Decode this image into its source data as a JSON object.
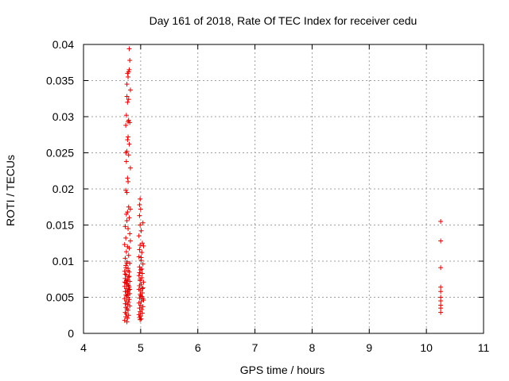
{
  "chart_data": {
    "type": "scatter",
    "title": "Day 161 of 2018, Rate Of TEC Index for receiver cedu",
    "xlabel": "GPS time / hours",
    "ylabel": "ROTI / TECUs",
    "xlim": [
      4,
      11
    ],
    "ylim": [
      0,
      0.04
    ],
    "xticks": [
      4,
      5,
      6,
      7,
      8,
      9,
      10,
      11
    ],
    "xtick_labels": [
      "4",
      "5",
      "6",
      "7",
      "8",
      "9",
      "10",
      "11"
    ],
    "yticks": [
      0,
      0.005,
      0.01,
      0.015,
      0.02,
      0.025,
      0.03,
      0.035,
      0.04
    ],
    "ytick_labels": [
      "0",
      "0.005",
      "0.01",
      "0.015",
      "0.02",
      "0.025",
      "0.03",
      "0.035",
      "0.04"
    ],
    "grid": true,
    "marker": "+",
    "color": "#e00000",
    "series": [
      {
        "name": "ROTI",
        "points": [
          [
            4.8,
            0.0394
          ],
          [
            4.81,
            0.0378
          ],
          [
            4.8,
            0.0365
          ],
          [
            4.79,
            0.0362
          ],
          [
            4.77,
            0.036
          ],
          [
            4.78,
            0.0355
          ],
          [
            4.76,
            0.0345
          ],
          [
            4.82,
            0.0337
          ],
          [
            4.76,
            0.0328
          ],
          [
            4.79,
            0.0324
          ],
          [
            4.77,
            0.032
          ],
          [
            4.75,
            0.0302
          ],
          [
            4.79,
            0.0295
          ],
          [
            4.78,
            0.0293
          ],
          [
            4.81,
            0.0292
          ],
          [
            4.74,
            0.0288
          ],
          [
            4.78,
            0.0272
          ],
          [
            4.77,
            0.0268
          ],
          [
            4.8,
            0.0262
          ],
          [
            4.76,
            0.0252
          ],
          [
            4.74,
            0.025
          ],
          [
            4.79,
            0.0247
          ],
          [
            4.75,
            0.0238
          ],
          [
            4.82,
            0.0229
          ],
          [
            4.77,
            0.0215
          ],
          [
            4.78,
            0.021
          ],
          [
            4.74,
            0.0198
          ],
          [
            4.76,
            0.0195
          ],
          [
            4.99,
            0.0186
          ],
          [
            4.98,
            0.0178
          ],
          [
            4.79,
            0.0175
          ],
          [
            4.82,
            0.0172
          ],
          [
            5.0,
            0.0172
          ],
          [
            4.77,
            0.0168
          ],
          [
            4.75,
            0.0165
          ],
          [
            4.98,
            0.0163
          ],
          [
            4.8,
            0.016
          ],
          [
            4.76,
            0.0156
          ],
          [
            5.04,
            0.0153
          ],
          [
            4.99,
            0.015
          ],
          [
            4.73,
            0.0148
          ],
          [
            4.78,
            0.0145
          ],
          [
            5.01,
            0.0142
          ],
          [
            4.81,
            0.0138
          ],
          [
            4.97,
            0.0135
          ],
          [
            4.74,
            0.0132
          ],
          [
            4.82,
            0.0128
          ],
          [
            5.03,
            0.0125
          ],
          [
            4.72,
            0.0123
          ],
          [
            4.99,
            0.0122
          ],
          [
            4.77,
            0.012
          ],
          [
            5.05,
            0.0121
          ],
          [
            4.8,
            0.0118
          ],
          [
            4.98,
            0.0116
          ],
          [
            4.75,
            0.0113
          ],
          [
            5.02,
            0.0112
          ],
          [
            4.79,
            0.0108
          ],
          [
            4.97,
            0.0106
          ],
          [
            4.73,
            0.0104
          ],
          [
            5.01,
            0.0101
          ],
          [
            4.76,
            0.0099
          ],
          [
            4.81,
            0.0097
          ],
          [
            5.04,
            0.0096
          ],
          [
            4.74,
            0.0094
          ],
          [
            4.98,
            0.0092
          ],
          [
            4.78,
            0.009
          ],
          [
            5.0,
            0.0088
          ],
          [
            4.72,
            0.0086
          ],
          [
            4.8,
            0.0085
          ],
          [
            5.03,
            0.0083
          ],
          [
            4.75,
            0.0081
          ],
          [
            4.97,
            0.008
          ],
          [
            4.79,
            0.0078
          ],
          [
            5.02,
            0.0077
          ],
          [
            4.73,
            0.0076
          ],
          [
            4.77,
            0.0074
          ],
          [
            4.99,
            0.0073
          ],
          [
            4.81,
            0.0072
          ],
          [
            5.05,
            0.0071
          ],
          [
            4.74,
            0.007
          ],
          [
            4.76,
            0.0069
          ],
          [
            5.01,
            0.0068
          ],
          [
            4.78,
            0.0067
          ],
          [
            4.98,
            0.0066
          ],
          [
            4.72,
            0.0065
          ],
          [
            4.8,
            0.0064
          ],
          [
            5.04,
            0.0063
          ],
          [
            4.75,
            0.0062
          ],
          [
            4.97,
            0.0061
          ],
          [
            4.79,
            0.006
          ],
          [
            5.0,
            0.0059
          ],
          [
            4.73,
            0.0058
          ],
          [
            4.77,
            0.0057
          ],
          [
            5.03,
            0.0056
          ],
          [
            4.81,
            0.0055
          ],
          [
            4.99,
            0.0054
          ],
          [
            4.74,
            0.0053
          ],
          [
            4.76,
            0.0052
          ],
          [
            5.02,
            0.0051
          ],
          [
            4.78,
            0.005
          ],
          [
            4.98,
            0.0049
          ],
          [
            4.72,
            0.0048
          ],
          [
            4.8,
            0.0047
          ],
          [
            5.05,
            0.0046
          ],
          [
            4.75,
            0.0045
          ],
          [
            5.01,
            0.0044
          ],
          [
            4.79,
            0.0043
          ],
          [
            4.97,
            0.0042
          ],
          [
            4.73,
            0.0041
          ],
          [
            4.77,
            0.004
          ],
          [
            5.0,
            0.0039
          ],
          [
            4.81,
            0.0038
          ],
          [
            5.04,
            0.0037
          ],
          [
            4.74,
            0.0036
          ],
          [
            4.98,
            0.0035
          ],
          [
            4.76,
            0.0034
          ],
          [
            5.02,
            0.0033
          ],
          [
            4.78,
            0.0032
          ],
          [
            4.99,
            0.003
          ],
          [
            4.73,
            0.0029
          ],
          [
            5.03,
            0.0028
          ],
          [
            4.75,
            0.0027
          ],
          [
            4.97,
            0.0026
          ],
          [
            4.79,
            0.0025
          ],
          [
            5.0,
            0.0024
          ],
          [
            4.74,
            0.0023
          ],
          [
            4.98,
            0.0022
          ],
          [
            4.77,
            0.0021
          ],
          [
            5.01,
            0.002
          ],
          [
            4.72,
            0.0018
          ],
          [
            4.76,
            0.0016
          ],
          [
            4.99,
            0.0019
          ],
          [
            4.8,
            0.0079
          ],
          [
            4.78,
            0.0087
          ],
          [
            5.02,
            0.0089
          ],
          [
            4.74,
            0.0091
          ],
          [
            4.99,
            0.0075
          ],
          [
            5.03,
            0.0062
          ],
          [
            4.77,
            0.0058
          ],
          [
            4.75,
            0.0073
          ],
          [
            5.0,
            0.0052
          ],
          [
            4.79,
            0.0066
          ],
          [
            4.73,
            0.0082
          ],
          [
            5.04,
            0.0048
          ],
          [
            4.81,
            0.0061
          ],
          [
            4.98,
            0.0084
          ],
          [
            4.76,
            0.0097
          ],
          [
            5.01,
            0.0105
          ],
          [
            4.72,
            0.0071
          ],
          [
            4.78,
            0.0054
          ],
          [
            10.25,
            0.0155
          ],
          [
            10.25,
            0.0128
          ],
          [
            10.25,
            0.0091
          ],
          [
            10.25,
            0.0064
          ],
          [
            10.25,
            0.0058
          ],
          [
            10.25,
            0.005
          ],
          [
            10.25,
            0.0045
          ],
          [
            10.25,
            0.0039
          ],
          [
            10.25,
            0.0035
          ],
          [
            10.25,
            0.0029
          ]
        ]
      }
    ]
  }
}
